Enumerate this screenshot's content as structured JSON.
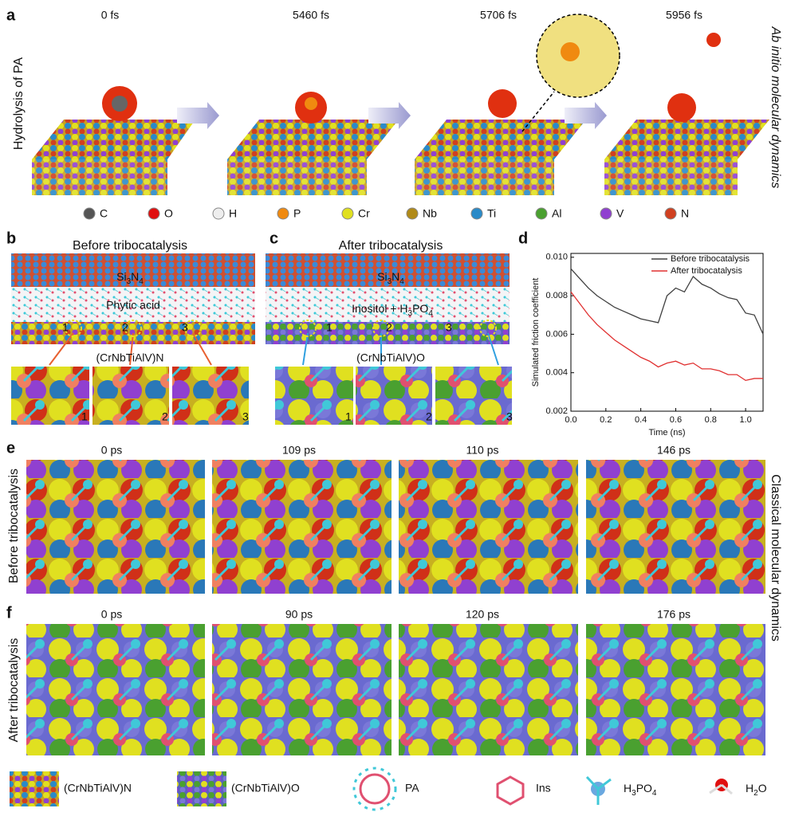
{
  "panel_a": {
    "letter": "a",
    "side_label": "Hydrolysis of PA",
    "method": "Ab initio molecular dynamics",
    "times": [
      "0 fs",
      "5460 fs",
      "5706 fs",
      "5956 fs"
    ],
    "elements": [
      {
        "symbol": "C",
        "color": "#555555"
      },
      {
        "symbol": "O",
        "color": "#e01010"
      },
      {
        "symbol": "H",
        "color": "#eeeeee"
      },
      {
        "symbol": "P",
        "color": "#f08a10"
      },
      {
        "symbol": "Cr",
        "color": "#e0e020"
      },
      {
        "symbol": "Nb",
        "color": "#b08a18"
      },
      {
        "symbol": "Ti",
        "color": "#2a8ac8"
      },
      {
        "symbol": "Al",
        "color": "#4aa030"
      },
      {
        "symbol": "V",
        "color": "#9040d0"
      },
      {
        "symbol": "N",
        "color": "#d04020"
      }
    ]
  },
  "panel_b": {
    "letter": "b",
    "title": "Before tribocatalysis",
    "counterface": [
      "Si",
      "3",
      "N",
      "4"
    ],
    "lubricant": "Phytic acid",
    "substrate": "(CrNbTiAlV)N",
    "sites": [
      "1",
      "2",
      "3"
    ]
  },
  "panel_c": {
    "letter": "c",
    "title": "After tribocatalysis",
    "counterface": [
      "Si",
      "3",
      "N",
      "4"
    ],
    "lubricant": [
      "Inositol  + H",
      "3",
      "PO",
      "4"
    ],
    "substrate": "(CrNbTiAlV)O",
    "sites": [
      "1",
      "2",
      "3"
    ]
  },
  "panel_d": {
    "letter": "d"
  },
  "chart_data": {
    "type": "line",
    "xlabel": "Time (ns)",
    "ylabel": "Simulated friction coefficient",
    "x": [
      0,
      0.05,
      0.1,
      0.15,
      0.2,
      0.25,
      0.3,
      0.35,
      0.4,
      0.45,
      0.5,
      0.55,
      0.6,
      0.65,
      0.7,
      0.75,
      0.8,
      0.85,
      0.9,
      0.95,
      1.0,
      1.05,
      1.1
    ],
    "series": [
      {
        "name": "Before tribocatalysis",
        "color": "#404040",
        "values": [
          0.0094,
          0.0089,
          0.0084,
          0.008,
          0.0077,
          0.0074,
          0.0072,
          0.007,
          0.0068,
          0.0067,
          0.0066,
          0.008,
          0.0084,
          0.0082,
          0.009,
          0.0086,
          0.0084,
          0.0081,
          0.0079,
          0.0078,
          0.0071,
          0.007,
          0.006
        ]
      },
      {
        "name": "After tribocatalysis",
        "color": "#e03030",
        "values": [
          0.0082,
          0.0076,
          0.007,
          0.0065,
          0.0061,
          0.0057,
          0.0054,
          0.0051,
          0.0048,
          0.0046,
          0.0043,
          0.0045,
          0.0046,
          0.0044,
          0.0045,
          0.0042,
          0.0042,
          0.0041,
          0.0039,
          0.0039,
          0.0036,
          0.0037,
          0.0037
        ]
      }
    ],
    "xlim": [
      0,
      1.1
    ],
    "ylim": [
      0.002,
      0.0102
    ],
    "xticks": [
      {
        "value": 0,
        "label": "0.0"
      },
      0.2,
      0.4,
      0.6,
      0.8,
      {
        "value": 1,
        "label": "1.0"
      }
    ],
    "yticks": [
      0.002,
      0.004,
      0.006,
      0.008,
      {
        "value": 0.01,
        "label": "0.010"
      }
    ],
    "legend": "upper right"
  },
  "method_classical": "Classical molecular dynamics",
  "panel_e": {
    "letter": "e",
    "side_label": "Before tribocatalysis",
    "times": [
      "0 ps",
      "109 ps",
      "110 ps",
      "146 ps"
    ]
  },
  "panel_f": {
    "letter": "f",
    "side_label": "After tribocatalysis",
    "times": [
      "0 ps",
      "90 ps",
      "120 ps",
      "176 ps"
    ]
  },
  "legend_bottom": {
    "nitride": "(CrNbTiAlV)N",
    "oxide": "(CrNbTiAlV)O",
    "pa": "PA",
    "ins": "Ins",
    "h3po4": [
      "H",
      "3",
      "PO",
      "4"
    ],
    "h2o": [
      "H",
      "2",
      "O"
    ]
  }
}
